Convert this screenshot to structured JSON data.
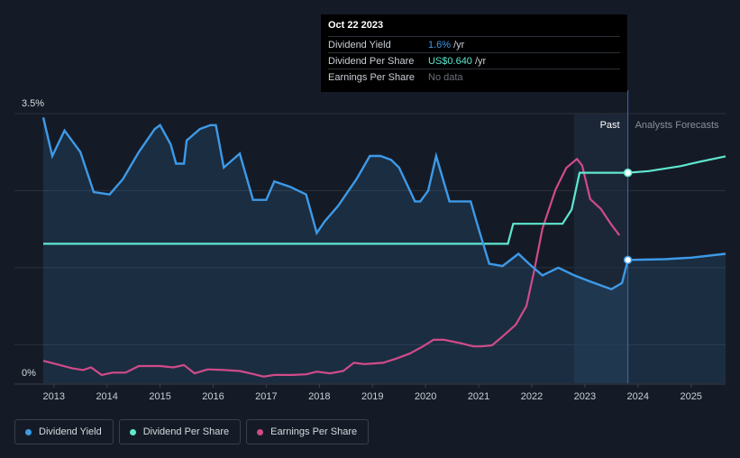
{
  "tooltip": {
    "date": "Oct 22 2023",
    "rows": [
      {
        "name": "Dividend Yield",
        "value": "1.6%",
        "unit": "/yr"
      },
      {
        "name": "Dividend Per Share",
        "value": "US$0.640",
        "unit": "/yr"
      },
      {
        "name": "Earnings Per Share",
        "value": "No data",
        "unit": ""
      }
    ]
  },
  "regions": {
    "past": "Past",
    "forecast": "Analysts Forecasts"
  },
  "legend": [
    {
      "label": "Dividend Yield",
      "color": "#3d9ae8"
    },
    {
      "label": "Dividend Per Share",
      "color": "#5ee8d0"
    },
    {
      "label": "Earnings Per Share",
      "color": "#d04b8a"
    }
  ],
  "colors": {
    "yield": "#3d9ae8",
    "dps": "#5ee8d0",
    "eps": "#d04b8a",
    "background": "#151b26"
  },
  "chart_data": {
    "type": "line",
    "title": "",
    "xlabel": "",
    "ylabel": "",
    "x_ticks": [
      "2013",
      "2014",
      "2015",
      "2016",
      "2017",
      "2018",
      "2019",
      "2020",
      "2021",
      "2022",
      "2023",
      "2024",
      "2025"
    ],
    "y_ticks": [
      "0%",
      "3.5%"
    ],
    "ylim_percent": [
      0,
      3.5
    ],
    "xlim": [
      2012.8,
      2025.65
    ],
    "hover_date": 2023.81,
    "forecast_start": 2022.8,
    "series": [
      {
        "name": "Dividend Yield",
        "unit": "%",
        "points": [
          [
            2012.8,
            3.45
          ],
          [
            2012.97,
            2.95
          ],
          [
            2013.2,
            3.28
          ],
          [
            2013.5,
            3.0
          ],
          [
            2013.75,
            2.48
          ],
          [
            2014.05,
            2.45
          ],
          [
            2014.3,
            2.65
          ],
          [
            2014.6,
            3.0
          ],
          [
            2014.9,
            3.3
          ],
          [
            2015.0,
            3.35
          ],
          [
            2015.2,
            3.1
          ],
          [
            2015.3,
            2.85
          ],
          [
            2015.45,
            2.85
          ],
          [
            2015.5,
            3.15
          ],
          [
            2015.75,
            3.3
          ],
          [
            2015.95,
            3.35
          ],
          [
            2016.05,
            3.35
          ],
          [
            2016.2,
            2.8
          ],
          [
            2016.5,
            2.98
          ],
          [
            2016.75,
            2.38
          ],
          [
            2017.0,
            2.38
          ],
          [
            2017.15,
            2.62
          ],
          [
            2017.45,
            2.55
          ],
          [
            2017.75,
            2.45
          ],
          [
            2017.95,
            1.95
          ],
          [
            2018.1,
            2.1
          ],
          [
            2018.35,
            2.3
          ],
          [
            2018.7,
            2.65
          ],
          [
            2018.95,
            2.95
          ],
          [
            2019.15,
            2.95
          ],
          [
            2019.35,
            2.9
          ],
          [
            2019.5,
            2.8
          ],
          [
            2019.8,
            2.36
          ],
          [
            2019.9,
            2.36
          ],
          [
            2020.05,
            2.5
          ],
          [
            2020.2,
            2.95
          ],
          [
            2020.45,
            2.36
          ],
          [
            2020.85,
            2.36
          ],
          [
            2021.0,
            2.0
          ],
          [
            2021.2,
            1.55
          ],
          [
            2021.45,
            1.52
          ],
          [
            2021.75,
            1.68
          ],
          [
            2021.95,
            1.55
          ],
          [
            2022.2,
            1.4
          ],
          [
            2022.5,
            1.5
          ],
          [
            2022.8,
            1.4
          ],
          [
            2023.1,
            1.32
          ],
          [
            2023.5,
            1.22
          ],
          [
            2023.7,
            1.3
          ],
          [
            2023.81,
            1.6
          ],
          [
            2024.5,
            1.61
          ],
          [
            2025.0,
            1.63
          ],
          [
            2025.65,
            1.68
          ]
        ]
      },
      {
        "name": "Dividend Per Share",
        "unit": "$/sh",
        "points": [
          [
            2012.8,
            0.424
          ],
          [
            2021.55,
            0.424
          ],
          [
            2021.65,
            0.485
          ],
          [
            2022.5,
            0.485
          ],
          [
            2022.58,
            0.485
          ],
          [
            2022.75,
            0.528
          ],
          [
            2022.9,
            0.64
          ],
          [
            2023.81,
            0.64
          ],
          [
            2024.2,
            0.645
          ],
          [
            2024.8,
            0.66
          ],
          [
            2025.2,
            0.675
          ],
          [
            2025.65,
            0.69
          ]
        ]
      },
      {
        "name": "Earnings Per Share",
        "unit": "$/sh",
        "points": [
          [
            2012.8,
            0.068
          ],
          [
            2013.05,
            0.058
          ],
          [
            2013.35,
            0.045
          ],
          [
            2013.55,
            0.04
          ],
          [
            2013.7,
            0.048
          ],
          [
            2013.9,
            0.025
          ],
          [
            2014.1,
            0.032
          ],
          [
            2014.35,
            0.032
          ],
          [
            2014.6,
            0.052
          ],
          [
            2015.0,
            0.052
          ],
          [
            2015.25,
            0.048
          ],
          [
            2015.45,
            0.055
          ],
          [
            2015.65,
            0.03
          ],
          [
            2015.9,
            0.042
          ],
          [
            2016.2,
            0.04
          ],
          [
            2016.5,
            0.037
          ],
          [
            2016.75,
            0.028
          ],
          [
            2016.95,
            0.02
          ],
          [
            2017.15,
            0.025
          ],
          [
            2017.5,
            0.025
          ],
          [
            2017.75,
            0.027
          ],
          [
            2017.95,
            0.035
          ],
          [
            2018.2,
            0.03
          ],
          [
            2018.45,
            0.037
          ],
          [
            2018.65,
            0.062
          ],
          [
            2018.85,
            0.058
          ],
          [
            2019.2,
            0.062
          ],
          [
            2019.45,
            0.075
          ],
          [
            2019.7,
            0.09
          ],
          [
            2019.95,
            0.112
          ],
          [
            2020.15,
            0.132
          ],
          [
            2020.35,
            0.132
          ],
          [
            2020.65,
            0.122
          ],
          [
            2020.9,
            0.112
          ],
          [
            2021.05,
            0.112
          ],
          [
            2021.25,
            0.115
          ],
          [
            2021.45,
            0.142
          ],
          [
            2021.7,
            0.178
          ],
          [
            2021.9,
            0.235
          ],
          [
            2022.05,
            0.345
          ],
          [
            2022.2,
            0.47
          ],
          [
            2022.45,
            0.59
          ],
          [
            2022.65,
            0.655
          ],
          [
            2022.85,
            0.682
          ],
          [
            2022.95,
            0.662
          ],
          [
            2023.1,
            0.56
          ],
          [
            2023.3,
            0.53
          ],
          [
            2023.5,
            0.482
          ],
          [
            2023.65,
            0.45
          ]
        ]
      }
    ]
  }
}
